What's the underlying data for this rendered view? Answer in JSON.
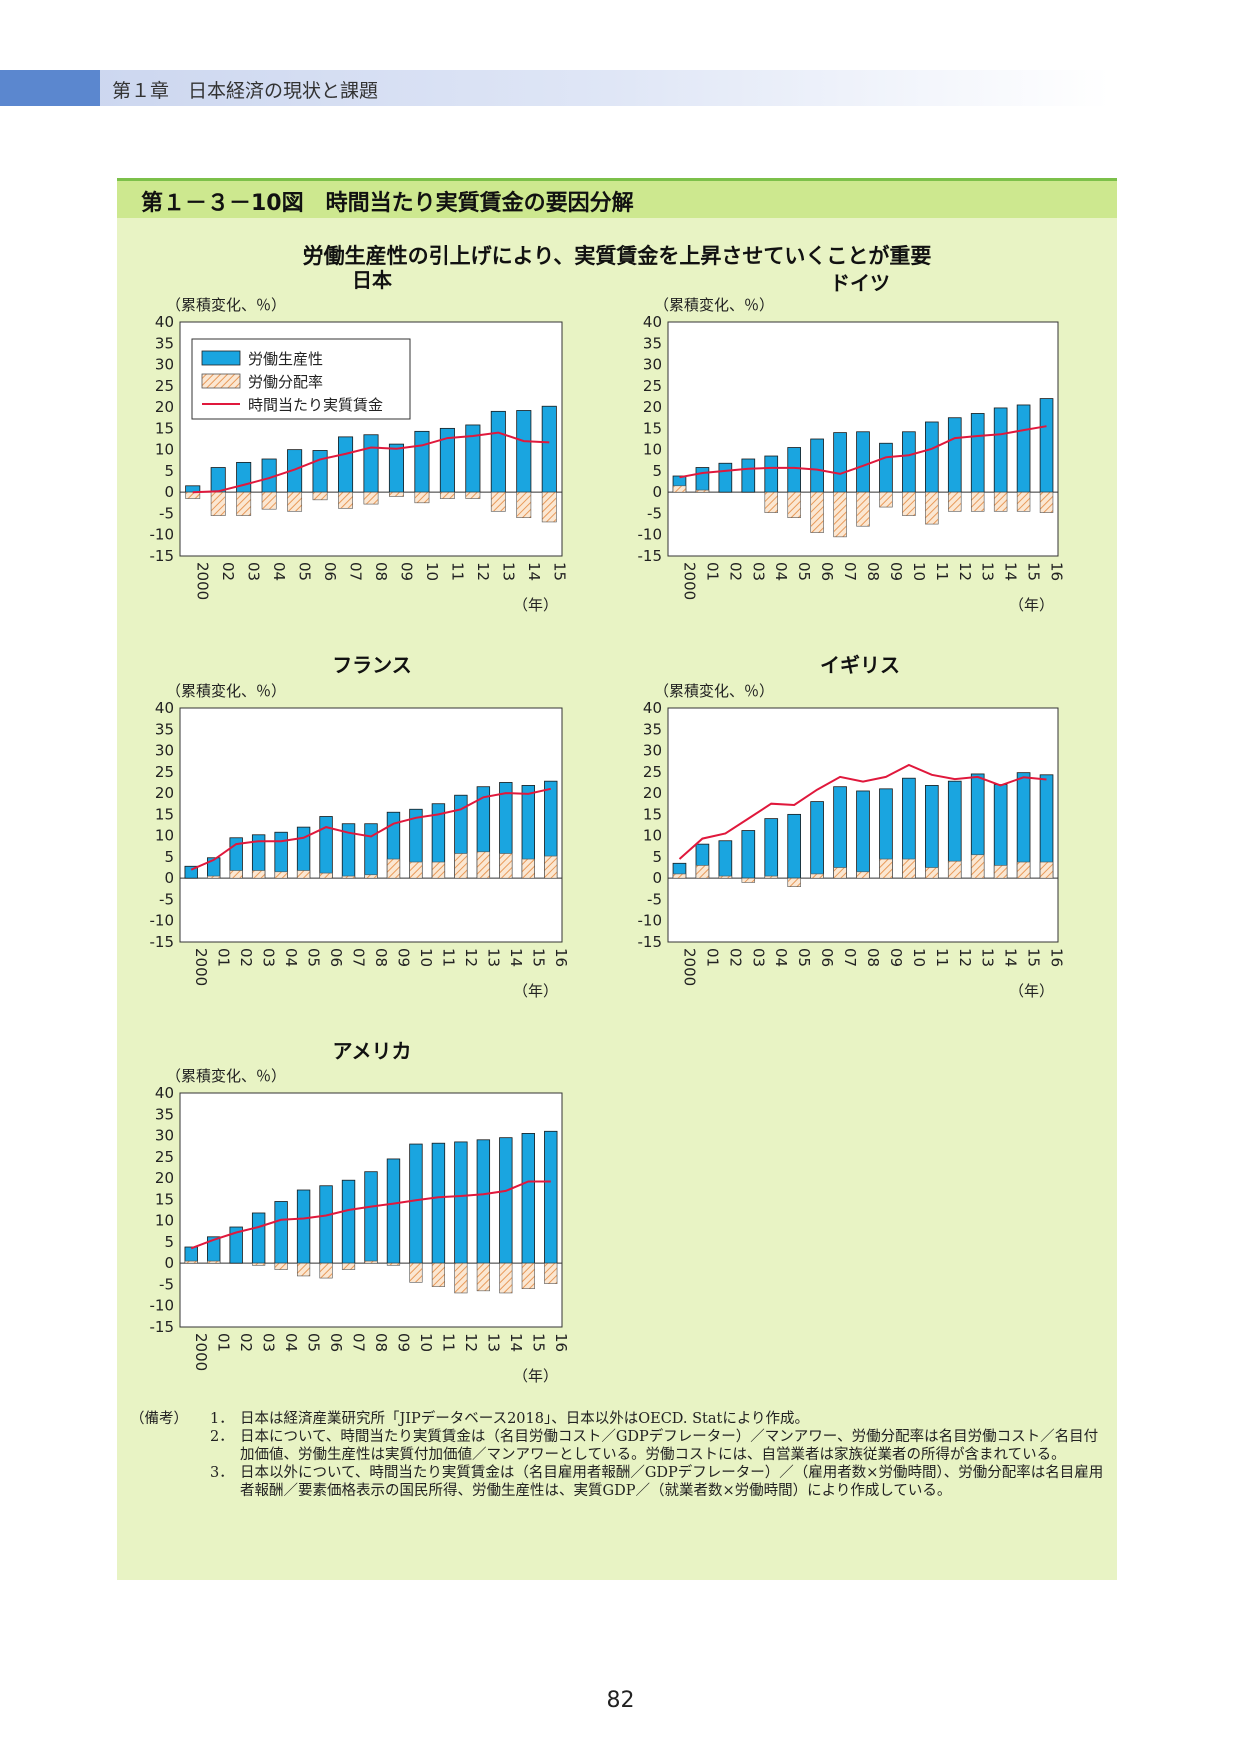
{
  "header": {
    "chapter": "第１章　日本経済の現状と課題"
  },
  "figure": {
    "title": "第１－３－10図　時間当たり実質賃金の要因分解",
    "subtitle": "労働生産性の引上げにより、実質賃金を上昇させていくことが重要"
  },
  "legend": {
    "productivity": "労働生産性",
    "distribution": "労働分配率",
    "wage": "時間当たり実質賃金"
  },
  "colors": {
    "productivity": "#1aa5e0",
    "distribution": "#e89a5a",
    "wage": "#e0183c",
    "panel": "#e8f3c4",
    "title_bar": "#cde88f"
  },
  "chart_data": [
    {
      "type": "bar",
      "title": "日本",
      "ylabel": "（累積変化、％）",
      "xlabel": "（年）",
      "ylim": [
        -15,
        40
      ],
      "yticks": [
        "40",
        "35",
        "30",
        "25",
        "20",
        "15",
        "10",
        "5",
        "0",
        "-5",
        "-10",
        "-15"
      ],
      "categories": [
        "2000",
        "02",
        "03",
        "04",
        "05",
        "06",
        "07",
        "08",
        "09",
        "10",
        "11",
        "12",
        "13",
        "14",
        "15"
      ],
      "series": [
        {
          "name": "労働生産性",
          "values": [
            1.5,
            5.8,
            7,
            7.8,
            10,
            9.8,
            13,
            13.5,
            11.3,
            14.3,
            15,
            15.8,
            19,
            19.2,
            20.2
          ]
        },
        {
          "name": "労働分配率",
          "values": [
            -1.5,
            -5.5,
            -5.5,
            -4,
            -4.5,
            -1.8,
            -3.8,
            -2.8,
            -1,
            -2.5,
            -1.5,
            -1.5,
            -4.5,
            -6,
            -7
          ]
        },
        {
          "name": "時間当たり実質賃金",
          "values": [
            0,
            0.2,
            1.7,
            3.3,
            5.3,
            7.7,
            9,
            10.5,
            10.2,
            11,
            12.7,
            13.2,
            14,
            12,
            11.7
          ]
        }
      ],
      "legend_position": "top-left"
    },
    {
      "type": "bar",
      "title": "ドイツ",
      "ylabel": "（累積変化、％）",
      "xlabel": "（年）",
      "ylim": [
        -15,
        40
      ],
      "yticks": [
        "40",
        "35",
        "30",
        "25",
        "20",
        "15",
        "10",
        "5",
        "0",
        "-5",
        "-10",
        "-15"
      ],
      "categories": [
        "2000",
        "01",
        "02",
        "03",
        "04",
        "05",
        "06",
        "07",
        "08",
        "09",
        "10",
        "11",
        "12",
        "13",
        "14",
        "15",
        "16"
      ],
      "series": [
        {
          "name": "労働生産性",
          "values": [
            3.8,
            5.8,
            6.8,
            7.8,
            8.5,
            10.5,
            12.5,
            14,
            14.2,
            11.5,
            14.2,
            16.5,
            17.5,
            18.5,
            19.8,
            20.5,
            22
          ]
        },
        {
          "name": "労働分配率",
          "values": [
            1.5,
            0.5,
            0,
            0,
            -4.8,
            -6,
            -9.5,
            -10.5,
            -8,
            -3.5,
            -5.5,
            -7.5,
            -4.5,
            -4.5,
            -4.5,
            -4.5,
            -4.8
          ]
        },
        {
          "name": "時間当たり実質賃金",
          "values": [
            3.5,
            4.5,
            5,
            5.5,
            5.7,
            5.7,
            5.3,
            4.3,
            6.2,
            8.2,
            8.7,
            10.2,
            12.7,
            13.2,
            13.6,
            14.6,
            15.5
          ]
        }
      ]
    },
    {
      "type": "bar",
      "title": "フランス",
      "ylabel": "（累積変化、％）",
      "xlabel": "（年）",
      "ylim": [
        -15,
        40
      ],
      "yticks": [
        "40",
        "35",
        "30",
        "25",
        "20",
        "15",
        "10",
        "5",
        "0",
        "-5",
        "-10",
        "-15"
      ],
      "categories": [
        "2000",
        "01",
        "02",
        "03",
        "04",
        "05",
        "06",
        "07",
        "08",
        "09",
        "10",
        "11",
        "12",
        "13",
        "14",
        "15",
        "16"
      ],
      "series": [
        {
          "name": "労働生産性",
          "values": [
            2.8,
            4.8,
            9.5,
            10.2,
            10.8,
            12,
            14.5,
            12.8,
            12.8,
            15.5,
            16.2,
            17.5,
            19.5,
            21.5,
            22.5,
            21.8,
            22.8
          ]
        },
        {
          "name": "労働分配率",
          "values": [
            0,
            0.5,
            1.8,
            1.8,
            1.5,
            1.8,
            1.2,
            0.5,
            0.8,
            4.5,
            3.8,
            3.8,
            5.8,
            6.2,
            5.8,
            4.5,
            5.2
          ]
        },
        {
          "name": "時間当たり実質賃金",
          "values": [
            2,
            4.3,
            8,
            8.7,
            8.7,
            9.5,
            12,
            10.7,
            9.8,
            12.8,
            14.2,
            15,
            16.2,
            19,
            20,
            19.8,
            21
          ]
        }
      ]
    },
    {
      "type": "bar",
      "title": "イギリス",
      "ylabel": "（累積変化、％）",
      "xlabel": "（年）",
      "ylim": [
        -15,
        40
      ],
      "yticks": [
        "40",
        "35",
        "30",
        "25",
        "20",
        "15",
        "10",
        "5",
        "0",
        "-5",
        "-10",
        "-15"
      ],
      "categories": [
        "2000",
        "01",
        "02",
        "03",
        "04",
        "05",
        "06",
        "07",
        "08",
        "09",
        "10",
        "11",
        "12",
        "13",
        "14",
        "15",
        "16"
      ],
      "series": [
        {
          "name": "労働生産性",
          "values": [
            3.5,
            8,
            8.8,
            11.2,
            14,
            15,
            18,
            21.5,
            20.5,
            21,
            23.5,
            21.8,
            22.8,
            24.5,
            22,
            24.8,
            24.3
          ]
        },
        {
          "name": "労働分配率",
          "values": [
            1,
            3,
            0.5,
            -1,
            0.5,
            -2,
            1,
            2.5,
            1.5,
            4.5,
            4.5,
            2.5,
            4,
            5.5,
            3,
            3.8,
            3.8
          ]
        },
        {
          "name": "時間当たり実質賃金",
          "values": [
            4.5,
            9.3,
            10.5,
            14,
            17.5,
            17.2,
            20.8,
            23.8,
            22.7,
            23.8,
            26.6,
            24.3,
            23.3,
            23.8,
            21.8,
            23.7,
            23.2
          ]
        }
      ]
    },
    {
      "type": "bar",
      "title": "アメリカ",
      "ylabel": "（累積変化、％）",
      "xlabel": "（年）",
      "ylim": [
        -15,
        40
      ],
      "yticks": [
        "40",
        "35",
        "30",
        "25",
        "20",
        "15",
        "10",
        "5",
        "0",
        "-5",
        "-10",
        "-15"
      ],
      "categories": [
        "2000",
        "01",
        "02",
        "03",
        "04",
        "05",
        "06",
        "07",
        "08",
        "09",
        "10",
        "11",
        "12",
        "13",
        "14",
        "15",
        "16"
      ],
      "series": [
        {
          "name": "労働生産性",
          "values": [
            3.8,
            6.2,
            8.5,
            11.8,
            14.5,
            17.2,
            18.2,
            19.5,
            21.5,
            24.5,
            28,
            28.2,
            28.5,
            29,
            29.5,
            30.5,
            31
          ]
        },
        {
          "name": "労働分配率",
          "values": [
            0.5,
            0.5,
            0,
            -0.5,
            -1.5,
            -3,
            -3.5,
            -1.5,
            0.5,
            -0.5,
            -4.5,
            -5.5,
            -7,
            -6.5,
            -7,
            -6,
            -4.8
          ]
        },
        {
          "name": "時間当たり実質賃金",
          "values": [
            3.5,
            5.5,
            7.2,
            8.5,
            10.2,
            10.5,
            11.2,
            12.5,
            13.3,
            14,
            14.8,
            15.5,
            15.8,
            16.2,
            17,
            19.2,
            19.2
          ]
        }
      ]
    }
  ],
  "notes": {
    "label": "（備考）",
    "items": [
      {
        "num": "1．",
        "text": "日本は経済産業研究所「JIPデータベース2018」、日本以外はOECD. Statにより作成。"
      },
      {
        "num": "2．",
        "text": "日本について、時間当たり実質賃金は（名目労働コスト／GDPデフレーター）／マンアワー、労働分配率は名目労働コスト／名目付加価値、労働生産性は実質付加価値／マンアワーとしている。労働コストには、自営業者は家族従業者の所得が含まれている。"
      },
      {
        "num": "3．",
        "text": "日本以外について、時間当たり実質賃金は（名目雇用者報酬／GDPデフレーター）／（雇用者数×労働時間）、労働分配率は名目雇用者報酬／要素価格表示の国民所得、労働生産性は、実質GDP／（就業者数×労働時間）により作成している。"
      }
    ]
  },
  "page_number": "82"
}
